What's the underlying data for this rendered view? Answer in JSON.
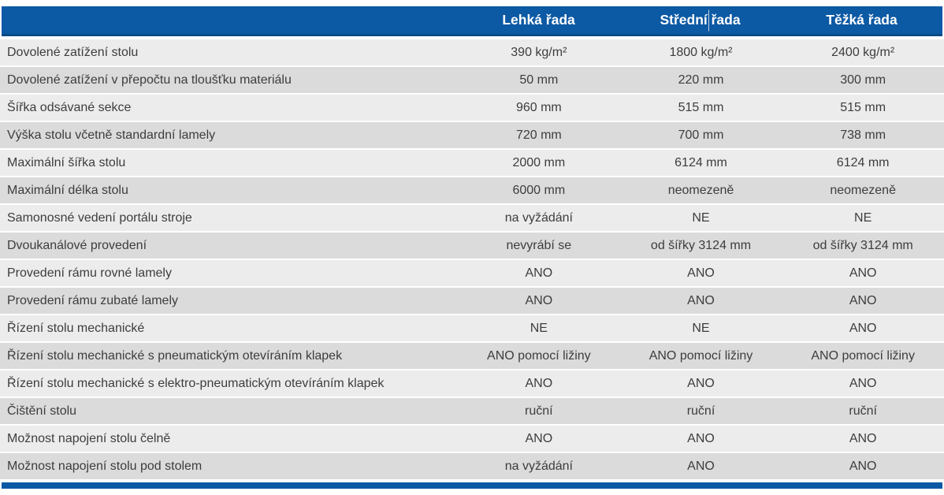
{
  "colors": {
    "header_bg": "#0c59a4",
    "header_border_bottom": "#0a4b87",
    "row_light": "#ececec",
    "row_dark": "#dbdbdb",
    "row_text": "#3d3d3d",
    "header_text": "#ffffff",
    "page_bg": "#ffffff"
  },
  "table": {
    "columns": [
      "Lehká řada",
      "Střední řada",
      "Těžká řada"
    ],
    "header_caret_visible": true,
    "rows": [
      {
        "label": "Dovolené zatížení stolu",
        "values": [
          "390 kg/m²",
          "1800 kg/m²",
          "2400 kg/m²"
        ]
      },
      {
        "label": "Dovolené zatížení v přepočtu na tloušťku materiálu",
        "values": [
          "50 mm",
          "220 mm",
          "300 mm"
        ]
      },
      {
        "label": "Šířka odsávané sekce",
        "values": [
          "960 mm",
          "515 mm",
          "515 mm"
        ]
      },
      {
        "label": "Výška stolu včetně standardní lamely",
        "values": [
          "720 mm",
          "700 mm",
          "738 mm"
        ]
      },
      {
        "label": "Maximální šířka stolu",
        "values": [
          "2000 mm",
          "6124 mm",
          "6124 mm"
        ]
      },
      {
        "label": "Maximální délka stolu",
        "values": [
          "6000 mm",
          "neomezeně",
          "neomezeně"
        ]
      },
      {
        "label": "Samonosné vedení portálu stroje",
        "values": [
          "na vyžádání",
          "NE",
          "NE"
        ]
      },
      {
        "label": "Dvoukanálové provedení",
        "values": [
          "nevyrábí se",
          "od šířky 3124 mm",
          "od šířky 3124 mm"
        ]
      },
      {
        "label": "Provedení rámu rovné lamely",
        "values": [
          "ANO",
          "ANO",
          "ANO"
        ]
      },
      {
        "label": "Provedení rámu zubaté lamely",
        "values": [
          "ANO",
          "ANO",
          "ANO"
        ]
      },
      {
        "label": "Řízení stolu mechanické",
        "values": [
          "NE",
          "NE",
          "ANO"
        ]
      },
      {
        "label": "Řízení stolu mechanické s pneumatickým otevíráním klapek",
        "values": [
          "ANO pomocí ližiny",
          "ANO pomocí ližiny",
          "ANO pomocí ližiny"
        ]
      },
      {
        "label": "Řízení stolu mechanické s elektro-pneumatickým otevíráním klapek",
        "values": [
          "ANO",
          "ANO",
          "ANO"
        ]
      },
      {
        "label": "Čištění stolu",
        "values": [
          "ruční",
          "ruční",
          "ruční"
        ]
      },
      {
        "label": "Možnost napojení stolu čelně",
        "values": [
          "ANO",
          "ANO",
          "ANO"
        ]
      },
      {
        "label": "Možnost napojení stolu pod stolem",
        "values": [
          "na vyžádání",
          "ANO",
          "ANO"
        ]
      }
    ]
  }
}
